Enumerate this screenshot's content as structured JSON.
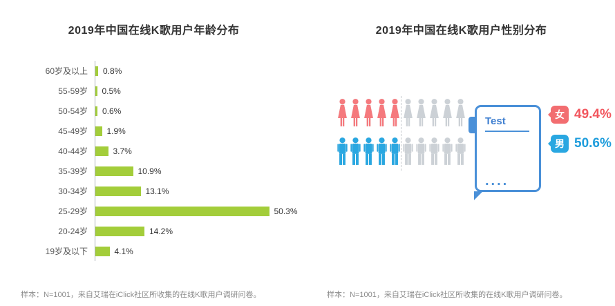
{
  "left_panel": {
    "title": "2019年中国在线K歌用户年龄分布",
    "footnote": "样本：N=1001，来自艾瑞在iClick社区所收集的在线K歌用户调研问卷。"
  },
  "right_panel": {
    "title": "2019年中国在线K歌用户性别分布",
    "footnote": "样本：N=1001，来自艾瑞在iClick社区所收集的在线K歌用户调研问卷。",
    "clipboard_label": "Test",
    "clipboard_dots": "....",
    "female_label": "女",
    "male_label": "男",
    "female_value": "49.4%",
    "male_value": "50.6%"
  },
  "colors": {
    "bar_green": "#a3cd3a",
    "female_pink": "#f5797d",
    "male_blue": "#29a7e1",
    "inactive_gray": "#ccd1d6",
    "clipboard_blue": "#4a90d8",
    "title_text": "#333333"
  },
  "chart_data": [
    {
      "type": "bar",
      "orientation": "horizontal",
      "title": "2019年中国在线K歌用户年龄分布",
      "categories": [
        "60岁及以上",
        "55-59岁",
        "50-54岁",
        "45-49岁",
        "40-44岁",
        "35-39岁",
        "30-34岁",
        "25-29岁",
        "20-24岁",
        "19岁及以下"
      ],
      "values": [
        0.8,
        0.5,
        0.6,
        1.9,
        3.7,
        10.9,
        13.1,
        50.3,
        14.2,
        4.1
      ],
      "unit": "%",
      "bar_color": "#a3cd3a",
      "xlim": [
        0,
        55
      ],
      "grid": false,
      "value_labels": "end-of-bar"
    },
    {
      "type": "pictogram",
      "title": "2019年中国在线K歌用户性别分布",
      "icons_per_row": 10,
      "inactive_color": "#ccd1d6",
      "series": [
        {
          "name": "女",
          "value": 49.4,
          "color": "#f5797d"
        },
        {
          "name": "男",
          "value": 50.6,
          "color": "#29a7e1"
        }
      ]
    }
  ]
}
